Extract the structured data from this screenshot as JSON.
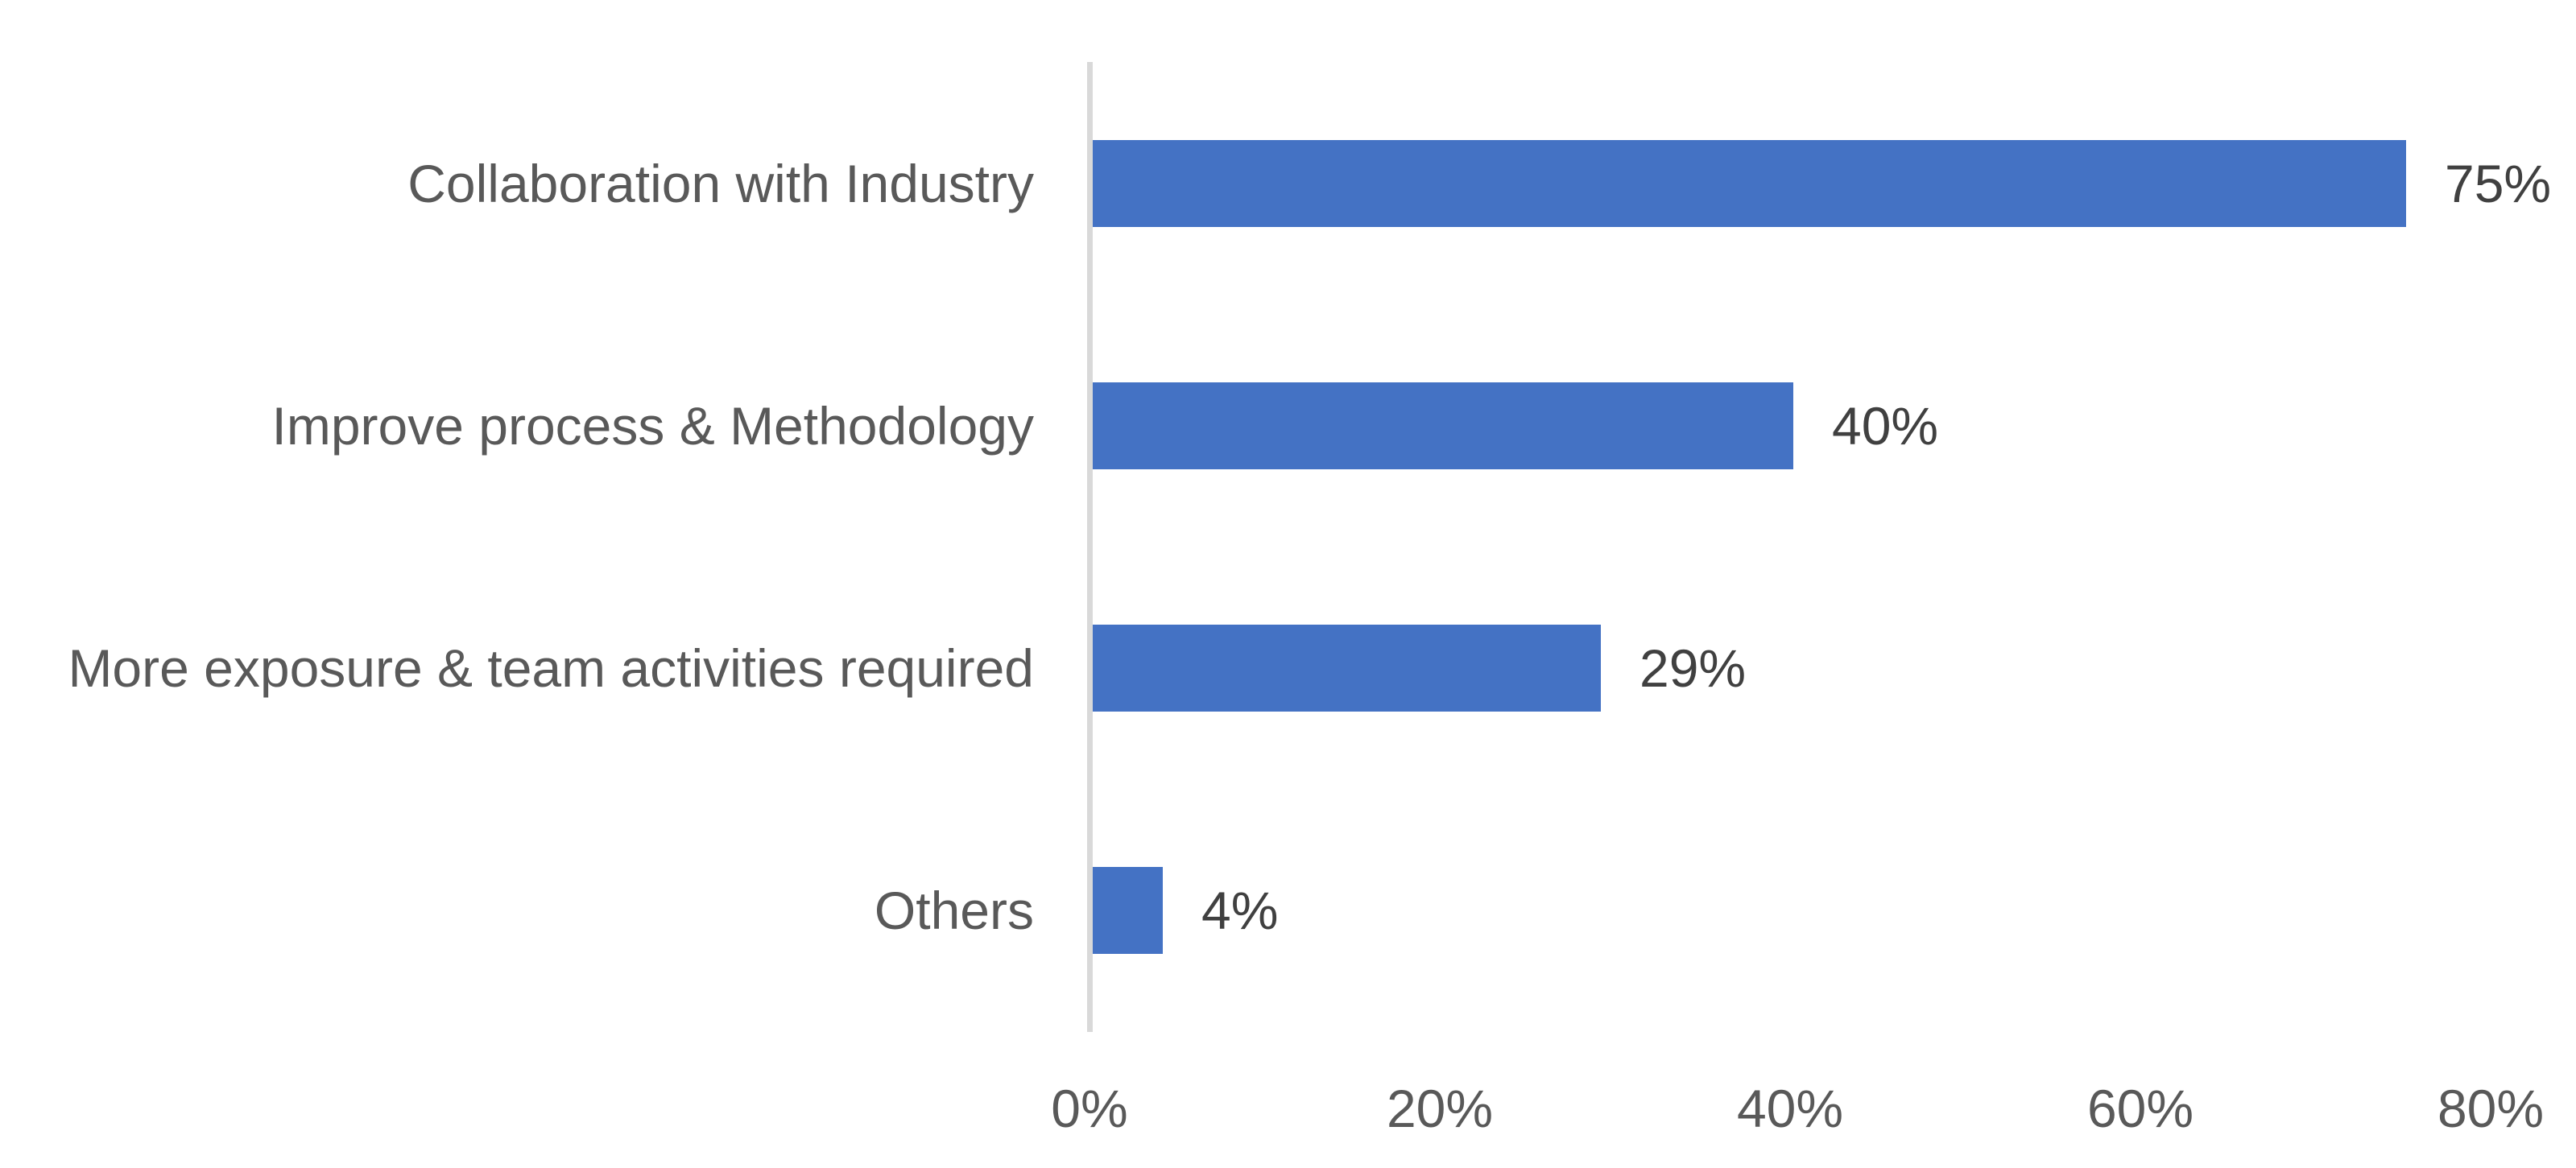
{
  "chart_data": {
    "type": "bar",
    "orientation": "horizontal",
    "title": "",
    "xlabel": "",
    "ylabel": "",
    "grid": "off",
    "legend": "none",
    "categories": [
      "Collaboration with Industry",
      "Improve process & Methodology",
      "More exposure & team activities required",
      "Others"
    ],
    "values": [
      75,
      40,
      29,
      4
    ],
    "value_labels": [
      "75%",
      "40%",
      "29%",
      "4%"
    ],
    "x_axis": {
      "ticks": [
        "0%",
        "20%",
        "40%",
        "60%",
        "80%"
      ],
      "tick_values": [
        0,
        20,
        40,
        60,
        80
      ],
      "min": 0,
      "max": 80
    },
    "colors": {
      "bar": "#4472C4",
      "axis_line": "#D9D9D9",
      "category_label": "#595959",
      "value_label": "#404040",
      "tick_label": "#595959",
      "background": "#FFFFFF"
    }
  }
}
